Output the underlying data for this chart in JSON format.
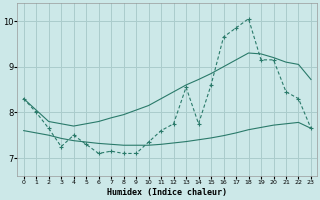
{
  "x": [
    0,
    1,
    2,
    3,
    4,
    5,
    6,
    7,
    8,
    9,
    10,
    11,
    12,
    13,
    14,
    15,
    16,
    17,
    18,
    19,
    20,
    21,
    22,
    23
  ],
  "y_main": [
    8.3,
    8.0,
    7.65,
    7.25,
    7.5,
    7.3,
    7.1,
    7.15,
    7.1,
    7.1,
    7.35,
    7.6,
    7.75,
    8.55,
    7.75,
    8.6,
    9.65,
    9.85,
    10.05,
    9.15,
    9.15,
    8.45,
    8.3,
    7.65
  ],
  "y_upper": [
    8.3,
    8.05,
    7.8,
    7.75,
    7.7,
    7.75,
    7.8,
    7.88,
    7.95,
    8.05,
    8.15,
    8.3,
    8.45,
    8.6,
    8.72,
    8.85,
    9.0,
    9.15,
    9.3,
    9.28,
    9.2,
    9.1,
    9.05,
    8.72
  ],
  "y_lower": [
    7.6,
    7.55,
    7.5,
    7.43,
    7.38,
    7.35,
    7.32,
    7.3,
    7.28,
    7.28,
    7.28,
    7.3,
    7.33,
    7.36,
    7.4,
    7.44,
    7.49,
    7.55,
    7.62,
    7.67,
    7.72,
    7.75,
    7.78,
    7.65
  ],
  "bg_color": "#cce8e8",
  "grid_color": "#aacccc",
  "line_color": "#2a7a6a",
  "xlabel": "Humidex (Indice chaleur)",
  "ylim": [
    6.6,
    10.4
  ],
  "xlim": [
    -0.5,
    23.5
  ],
  "yticks": [
    7,
    8,
    9,
    10
  ],
  "xticks": [
    0,
    1,
    2,
    3,
    4,
    5,
    6,
    7,
    8,
    9,
    10,
    11,
    12,
    13,
    14,
    15,
    16,
    17,
    18,
    19,
    20,
    21,
    22,
    23
  ]
}
